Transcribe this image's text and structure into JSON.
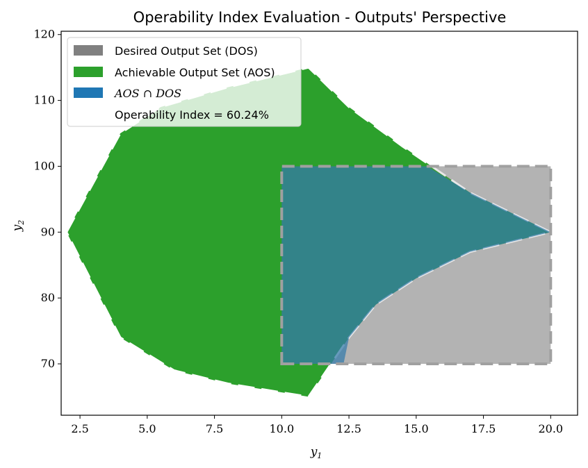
{
  "chart_data": {
    "type": "area",
    "title": "Operability Index Evaluation - Outputs' Perspective",
    "xlabel": "y",
    "xlabel_sub": "1",
    "ylabel": "y",
    "ylabel_sub": "2",
    "xlim": [
      1.8,
      21.0
    ],
    "ylim": [
      62.2,
      120.5
    ],
    "xticks": [
      2.5,
      5.0,
      7.5,
      10.0,
      12.5,
      15.0,
      17.5,
      20.0
    ],
    "xtick_labels": [
      "2.5",
      "5.0",
      "7.5",
      "10.0",
      "12.5",
      "15.0",
      "17.5",
      "20.0"
    ],
    "yticks": [
      70,
      80,
      90,
      100,
      110,
      120
    ],
    "ytick_labels": [
      "70",
      "80",
      "90",
      "100",
      "110",
      "120"
    ],
    "grid": false,
    "legend_position": "top-left",
    "series": [
      {
        "name": "Desired Output Set (DOS)",
        "legend_label": "Desired Output Set (DOS)",
        "color": "#808080",
        "fill_alpha": 0.5,
        "points": [
          [
            10,
            70
          ],
          [
            20,
            70
          ],
          [
            20,
            100
          ],
          [
            10,
            100
          ]
        ]
      },
      {
        "name": "Achievable Output Set (AOS)",
        "legend_label": "Achievable Output Set (AOS)",
        "color": "#2ca02c",
        "points": [
          [
            2,
            90
          ],
          [
            4,
            105
          ],
          [
            5.5,
            109
          ],
          [
            8,
            112
          ],
          [
            11,
            115
          ],
          [
            12.5,
            109
          ],
          [
            14.5,
            103
          ],
          [
            17,
            96
          ],
          [
            20,
            90
          ],
          [
            17,
            87
          ],
          [
            15,
            83
          ],
          [
            13.5,
            79
          ],
          [
            12.5,
            74
          ],
          [
            11,
            65
          ],
          [
            8,
            67
          ],
          [
            6,
            69
          ],
          [
            4,
            74
          ]
        ]
      },
      {
        "name": "AOS ∩ DOS",
        "legend_label": "AOS ∩ DOS",
        "color": "#1f77b4",
        "points": [
          [
            10,
            70
          ],
          [
            12.3,
            70
          ],
          [
            12.5,
            74
          ],
          [
            13.5,
            79
          ],
          [
            15,
            83
          ],
          [
            17,
            87
          ],
          [
            20,
            90
          ],
          [
            17,
            96
          ],
          [
            15.4,
            100
          ],
          [
            10,
            100
          ]
        ]
      }
    ],
    "annotation": "Operability Index = 60.24%"
  }
}
